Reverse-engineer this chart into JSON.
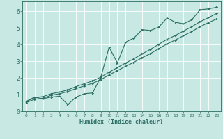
{
  "xlabel": "Humidex (Indice chaleur)",
  "bg_color": "#c8e8e4",
  "grid_color": "#ffffff",
  "line_color": "#2a6e62",
  "xlim": [
    -0.5,
    23.5
  ],
  "ylim": [
    0,
    6.6
  ],
  "xticks": [
    0,
    1,
    2,
    3,
    4,
    5,
    6,
    7,
    8,
    9,
    10,
    11,
    12,
    13,
    14,
    15,
    16,
    17,
    18,
    19,
    20,
    21,
    22,
    23
  ],
  "yticks": [
    0,
    1,
    2,
    3,
    4,
    5,
    6
  ],
  "series1_x": [
    0,
    1,
    2,
    3,
    4,
    5,
    6,
    7,
    8,
    9,
    10,
    11,
    12,
    13,
    14,
    15,
    16,
    17,
    18,
    19,
    20,
    21,
    22,
    23
  ],
  "series1_y": [
    0.6,
    0.85,
    0.75,
    0.85,
    0.9,
    0.4,
    0.85,
    1.05,
    1.1,
    2.05,
    3.85,
    2.9,
    4.15,
    4.4,
    4.9,
    4.85,
    5.05,
    5.6,
    5.35,
    5.25,
    5.5,
    6.1,
    6.15,
    6.25
  ],
  "series2_x": [
    0,
    1,
    2,
    3,
    4,
    5,
    6,
    7,
    8,
    9,
    10,
    11,
    12,
    13,
    14,
    15,
    16,
    17,
    18,
    19,
    20,
    21,
    22,
    23
  ],
  "series2_y": [
    0.58,
    0.82,
    0.88,
    1.05,
    1.15,
    1.28,
    1.48,
    1.65,
    1.82,
    2.05,
    2.35,
    2.62,
    2.9,
    3.15,
    3.45,
    3.72,
    4.02,
    4.32,
    4.55,
    4.82,
    5.08,
    5.38,
    5.62,
    5.88
  ],
  "series3_x": [
    0,
    1,
    2,
    3,
    4,
    5,
    6,
    7,
    8,
    9,
    10,
    11,
    12,
    13,
    14,
    15,
    16,
    17,
    18,
    19,
    20,
    21,
    22,
    23
  ],
  "series3_y": [
    0.52,
    0.72,
    0.78,
    0.96,
    1.05,
    1.18,
    1.36,
    1.52,
    1.68,
    1.9,
    2.18,
    2.44,
    2.7,
    2.94,
    3.22,
    3.46,
    3.76,
    4.04,
    4.28,
    4.54,
    4.79,
    5.08,
    5.32,
    5.55
  ]
}
